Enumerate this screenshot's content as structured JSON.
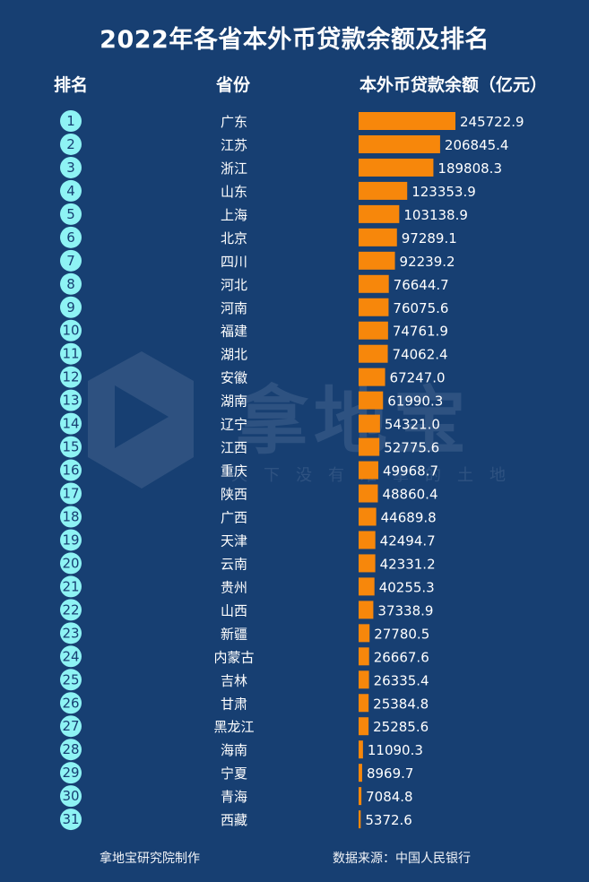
{
  "header": {
    "title": "2022年各省本外币贷款余额及排名",
    "col_rank": "排名",
    "col_province": "省份",
    "col_value": "本外币贷款余额（亿元）"
  },
  "watermark": {
    "brand": "拿地宝",
    "slogan": "天下没有难拿的土地"
  },
  "footer": {
    "maker": "拿地宝研究院制作",
    "source": "数据来源：中国人民银行"
  },
  "colors": {
    "background": "#173f72",
    "bar": "#f7870b",
    "rank_badge": "#8ef3f4",
    "rank_text": "#173f72"
  },
  "chart_data": {
    "type": "bar",
    "orientation": "horizontal",
    "title": "2022年各省本外币贷款余额及排名",
    "xlabel": "本外币贷款余额（亿元）",
    "ylabel": "省份",
    "categories": [
      "广东",
      "江苏",
      "浙江",
      "山东",
      "上海",
      "北京",
      "四川",
      "河北",
      "河南",
      "福建",
      "湖北",
      "安徽",
      "湖南",
      "辽宁",
      "江西",
      "重庆",
      "陕西",
      "广西",
      "天津",
      "云南",
      "贵州",
      "山西",
      "新疆",
      "内蒙古",
      "吉林",
      "甘肃",
      "黑龙江",
      "海南",
      "宁夏",
      "青海",
      "西藏"
    ],
    "ranks": [
      1,
      2,
      3,
      4,
      5,
      6,
      7,
      8,
      9,
      10,
      11,
      12,
      13,
      14,
      15,
      16,
      17,
      18,
      19,
      20,
      21,
      22,
      23,
      24,
      25,
      26,
      27,
      28,
      29,
      30,
      31
    ],
    "values": [
      245722.9,
      206845.4,
      189808.3,
      123353.9,
      103138.9,
      97289.1,
      92239.2,
      76644.7,
      76075.6,
      74761.9,
      74062.4,
      67247.0,
      61990.3,
      54321.0,
      52775.6,
      49968.7,
      48860.4,
      44689.8,
      42494.7,
      42331.2,
      40255.3,
      37338.9,
      27780.5,
      26667.6,
      26335.4,
      25384.8,
      25285.6,
      11090.3,
      8969.7,
      7084.8,
      5372.6
    ],
    "value_labels": [
      "245722.9",
      "206845.4",
      "189808.3",
      "123353.9",
      "103138.9",
      "97289.1",
      "92239.2",
      "76644.7",
      "76075.6",
      "74761.9",
      "74062.4",
      "67247.0",
      "61990.3",
      "54321.0",
      "52775.6",
      "49968.7",
      "48860.4",
      "44689.8",
      "42494.7",
      "42331.2",
      "40255.3",
      "37338.9",
      "27780.5",
      "26667.6",
      "26335.4",
      "25384.8",
      "25285.6",
      "11090.3",
      "8969.7",
      "7084.8",
      "5372.6"
    ],
    "xlim": [
      0,
      245722.9
    ],
    "grid": false,
    "legend": "none"
  }
}
